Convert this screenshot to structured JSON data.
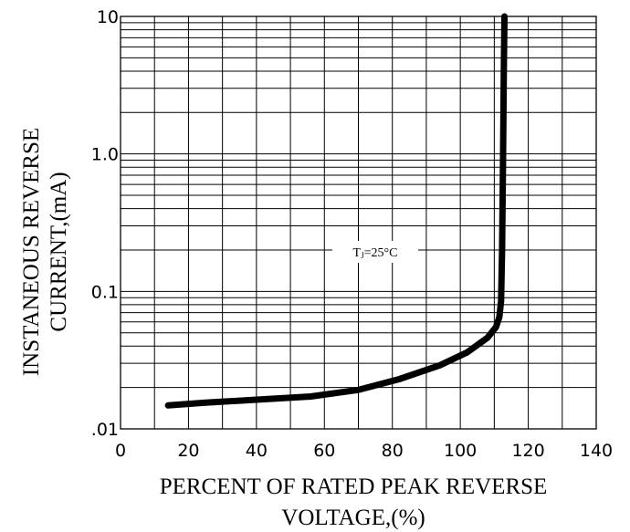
{
  "chart_data": {
    "type": "line",
    "xlabel_lines": [
      "PERCENT OF RATED PEAK REVERSE",
      "VOLTAGE,(%)"
    ],
    "ylabel_lines": [
      "INSTANEOUS REVERSE",
      "CURRENT,(mA)"
    ],
    "x_ticks": [
      0,
      20,
      40,
      60,
      80,
      100,
      120,
      140
    ],
    "x_tick_labels": [
      "0",
      "20",
      "40",
      "60",
      "80",
      "100",
      "120",
      "140"
    ],
    "y_ticks": [
      0.01,
      0.1,
      1,
      10
    ],
    "y_tick_labels": [
      ".01",
      "0.1",
      "1.0",
      "10"
    ],
    "xlim": [
      0,
      140
    ],
    "ylim": [
      0.01,
      10
    ],
    "y_scale": "log",
    "grid": true,
    "annotation": "TJ=25°C",
    "series": [
      {
        "x": [
          14,
          25,
          40,
          56,
          70,
          82,
          94,
          102,
          108,
          110.5,
          111.5,
          112,
          112.3,
          112.6,
          112.8,
          113
        ],
        "y": [
          0.0148,
          0.0155,
          0.0163,
          0.0172,
          0.0192,
          0.023,
          0.029,
          0.036,
          0.046,
          0.055,
          0.065,
          0.085,
          0.2,
          1.0,
          4.0,
          10.0
        ],
        "color": "#000000"
      }
    ]
  }
}
